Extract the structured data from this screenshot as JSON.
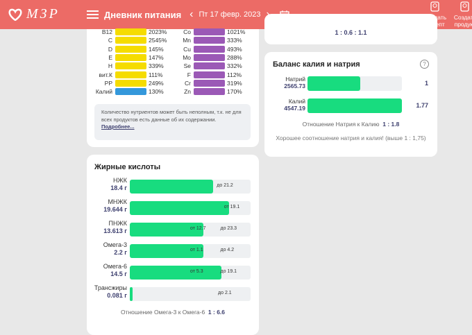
{
  "header": {
    "logo": "МЗР",
    "title": "Дневник питания",
    "date": "Пт 17 февр. 2023",
    "create_recipe": [
      "Создать",
      "рецепт"
    ],
    "create_product": [
      "Создать",
      "продукт"
    ]
  },
  "colors": {
    "header": "#ec6b66",
    "vitamin": "#f5dc00",
    "mineral": "#9b59b6",
    "potassium": "#3498db",
    "green": "#18dc7f"
  },
  "micronutrients": {
    "left": [
      {
        "label": "B12",
        "value": "2023%"
      },
      {
        "label": "C",
        "value": "2545%"
      },
      {
        "label": "D",
        "value": "145%"
      },
      {
        "label": "E",
        "value": "147%"
      },
      {
        "label": "H",
        "value": "339%"
      },
      {
        "label": "вит.К",
        "value": "111%"
      },
      {
        "label": "PP",
        "value": "249%"
      },
      {
        "label": "Калий",
        "value": "130%"
      }
    ],
    "right": [
      {
        "label": "Co",
        "value": "1021%"
      },
      {
        "label": "Mn",
        "value": "333%"
      },
      {
        "label": "Cu",
        "value": "493%"
      },
      {
        "label": "Mo",
        "value": "288%"
      },
      {
        "label": "Se",
        "value": "332%"
      },
      {
        "label": "F",
        "value": "112%"
      },
      {
        "label": "Cr",
        "value": "319%"
      },
      {
        "label": "Zn",
        "value": "170%"
      }
    ],
    "note": "Количество нутриентов может быть неполным, т.к. не для всех продуктов есть данные об их содержании.",
    "note_link": "Подробнее..."
  },
  "top_ratio": "1 : 0.6 : 1.1",
  "balance": {
    "title": "Баланс калия и натрия",
    "rows": [
      {
        "label": "Натрий",
        "value": "2565.73",
        "ratio": "1",
        "fill": 0.56
      },
      {
        "label": "Калий",
        "value": "4547.19",
        "ratio": "1.77",
        "fill": 1
      }
    ],
    "ratio_label": "Отношение Натрия к Калию",
    "ratio_value": "1 : 1.8",
    "message": "Хорошее соотношение натрия и калия! (выше 1 : 1,75)"
  },
  "fats": {
    "title": "Жирные кислоты",
    "rows": [
      {
        "label": "НЖК",
        "value": "18.4 г",
        "fill": 0.69,
        "from": "",
        "to": "до 21.2"
      },
      {
        "label": "МНЖК",
        "value": "19.644 г",
        "fill": 0.82,
        "from": "от 19.1",
        "to": ""
      },
      {
        "label": "ПНЖК",
        "value": "13.613 г",
        "fill": 0.61,
        "from": "от 12.7",
        "to": "до 23.3"
      },
      {
        "label": "Омега-3",
        "value": "2.2 г",
        "fill": 0.61,
        "from": "от 1.1",
        "to": "до 4.2"
      },
      {
        "label": "Омега-6",
        "value": "14.5 г",
        "fill": 0.76,
        "from": "от 5.3",
        "to": "до 19.1"
      },
      {
        "label": "Трансжиры",
        "value": "0.081 г",
        "fill": 0.02,
        "from": "",
        "to": "до 2.1"
      }
    ],
    "ratio_label": "Отношение Омега-3 к Омега-6",
    "ratio_value": "1 : 6.6"
  }
}
